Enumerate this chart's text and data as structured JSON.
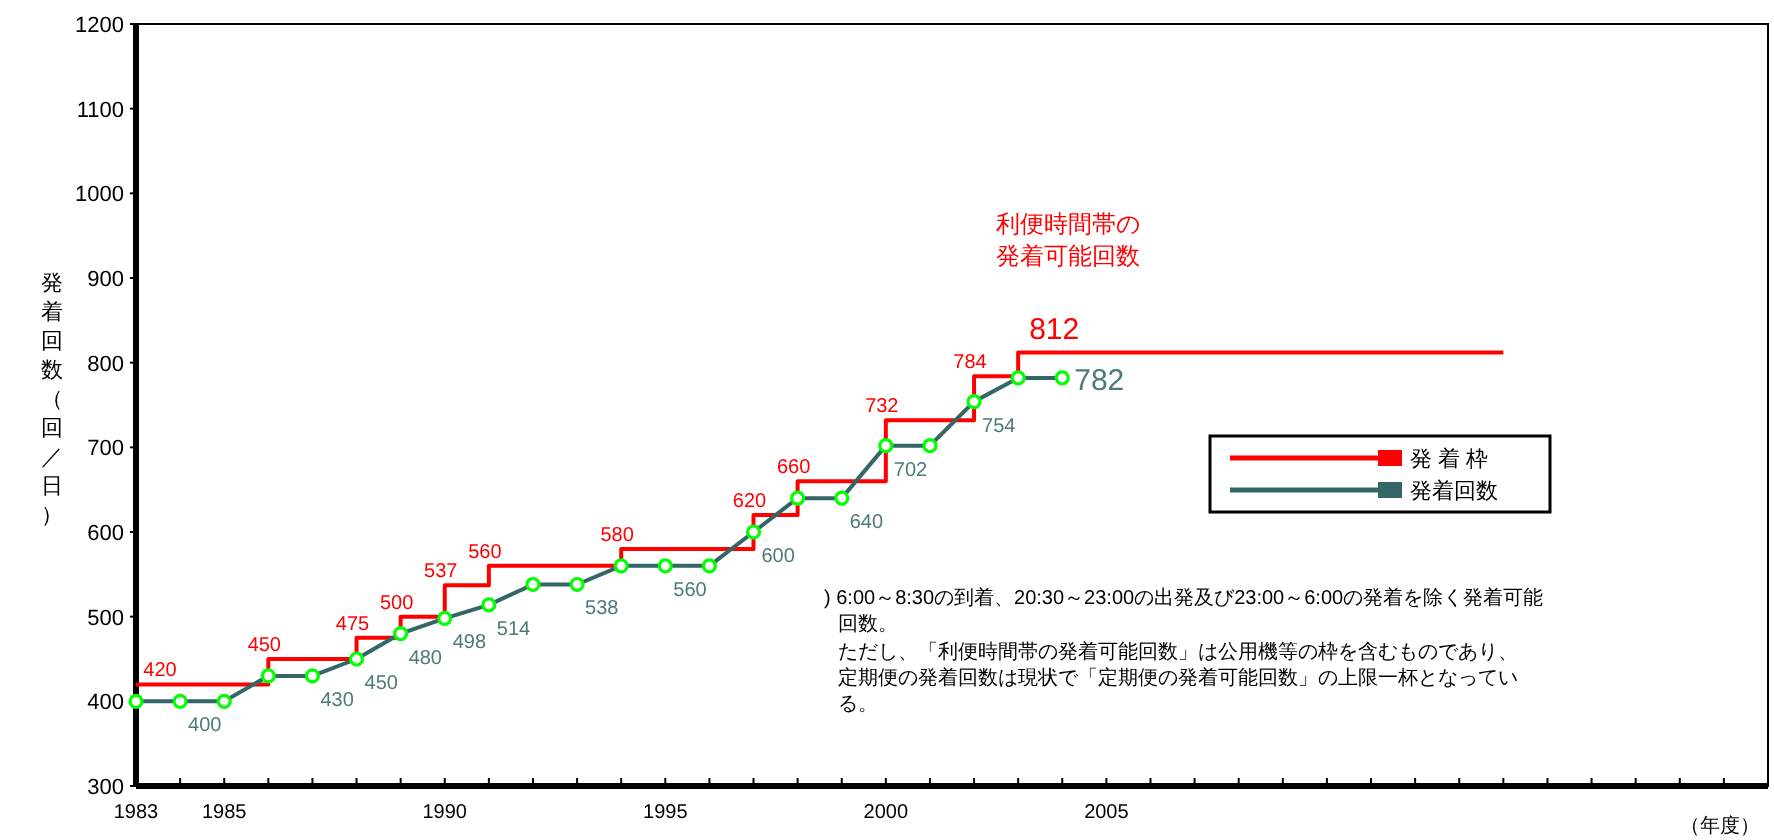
{
  "chart_data": {
    "type": "line",
    "ylabel": "発着回数（回／日）",
    "xlabel": "（年度）",
    "xlim": [
      1983,
      2020
    ],
    "xticks": [
      1983,
      {
        "value": 1984,
        "label": null
      },
      1985,
      {
        "value": 1986,
        "label": null
      },
      {
        "value": 1987,
        "label": null
      },
      {
        "value": 1988,
        "label": null
      },
      {
        "value": 1989,
        "label": null
      },
      1990,
      {
        "value": 1991,
        "label": null
      },
      {
        "value": 1992,
        "label": null
      },
      {
        "value": 1993,
        "label": null
      },
      {
        "value": 1994,
        "label": null
      },
      1995,
      {
        "value": 1996,
        "label": null
      },
      {
        "value": 1997,
        "label": null
      },
      {
        "value": 1998,
        "label": null
      },
      {
        "value": 1999,
        "label": null
      },
      2000,
      {
        "value": 2001,
        "label": null
      },
      {
        "value": 2002,
        "label": null
      },
      {
        "value": 2003,
        "label": null
      },
      {
        "value": 2004,
        "label": null
      },
      2005,
      {
        "value": 2006,
        "label": null
      },
      {
        "value": 2007,
        "label": null
      },
      {
        "value": 2008,
        "label": null
      },
      {
        "value": 2009,
        "label": null
      },
      {
        "value": 2010,
        "label": null
      },
      {
        "value": 2011,
        "label": null
      },
      {
        "value": 2012,
        "label": null
      },
      {
        "value": 2013,
        "label": null
      },
      {
        "value": 2014,
        "label": null
      },
      {
        "value": 2015,
        "label": null
      },
      {
        "value": 2016,
        "label": null
      },
      {
        "value": 2017,
        "label": null
      },
      {
        "value": 2018,
        "label": null
      },
      {
        "value": 2019,
        "label": null
      },
      {
        "value": 2020,
        "label": null
      }
    ],
    "ylim": [
      300,
      1200
    ],
    "yticks": [
      300,
      400,
      500,
      600,
      700,
      800,
      900,
      1000,
      1100,
      1200
    ],
    "grid": false,
    "legend": "right",
    "series": [
      {
        "name": "発 着 枠",
        "type": "step",
        "color": "#ff0000",
        "marker": "none",
        "x": [
          1983,
          1984,
          1985,
          1986,
          1987,
          1988,
          1989,
          1990,
          1991,
          1992,
          1993,
          1994,
          1995,
          1996,
          1997,
          1998,
          1999,
          2000,
          2001,
          2002,
          2003,
          2004,
          2005,
          2006,
          2007,
          2008,
          2009,
          2010,
          2011,
          2012,
          2013,
          2014
        ],
        "values": [
          420,
          420,
          420,
          450,
          450,
          475,
          500,
          537,
          560,
          560,
          560,
          580,
          580,
          580,
          620,
          660,
          660,
          732,
          732,
          784,
          812,
          812,
          812,
          812,
          812,
          812,
          812,
          812,
          812,
          812,
          812,
          812
        ],
        "value_labels": [
          "420",
          null,
          null,
          "450",
          null,
          "475",
          "500",
          "537",
          "560",
          null,
          null,
          "580",
          null,
          null,
          "620",
          "660",
          null,
          "732",
          null,
          "784",
          "812",
          null,
          null,
          null,
          null,
          null,
          null,
          null,
          null,
          null,
          null,
          null
        ]
      },
      {
        "name": "発着回数",
        "color": "#336666",
        "marker": "circle",
        "x": [
          1983,
          1984,
          1985,
          1986,
          1987,
          1988,
          1989,
          1990,
          1991,
          1992,
          1993,
          1994,
          1995,
          1996,
          1997,
          1998,
          1999,
          2000,
          2001,
          2002,
          2003,
          2004
        ],
        "values": [
          400,
          400,
          400,
          430,
          430,
          450,
          480,
          498,
          514,
          538,
          538,
          560,
          560,
          560,
          600,
          640,
          640,
          702,
          702,
          754,
          782,
          782
        ],
        "value_labels": [
          null,
          "400",
          null,
          null,
          "430",
          "450",
          "480",
          "498",
          "514",
          null,
          "538",
          null,
          "560",
          null,
          "600",
          null,
          "640",
          "702",
          null,
          "754",
          null,
          "782"
        ]
      }
    ],
    "annotations": [
      "利便時間帯の発着可能回数",
      ") 6:00～8:30の到着、20:30～23:00の出発及び23:00～6:00の発着を除く発着可能回数。",
      "ただし、「利便時間帯の発着可能回数」は公用機等の枠を含むものであり、定期便の発着回数は現状で「定期便の発着可能回数」の上限一杯となっている。"
    ]
  }
}
